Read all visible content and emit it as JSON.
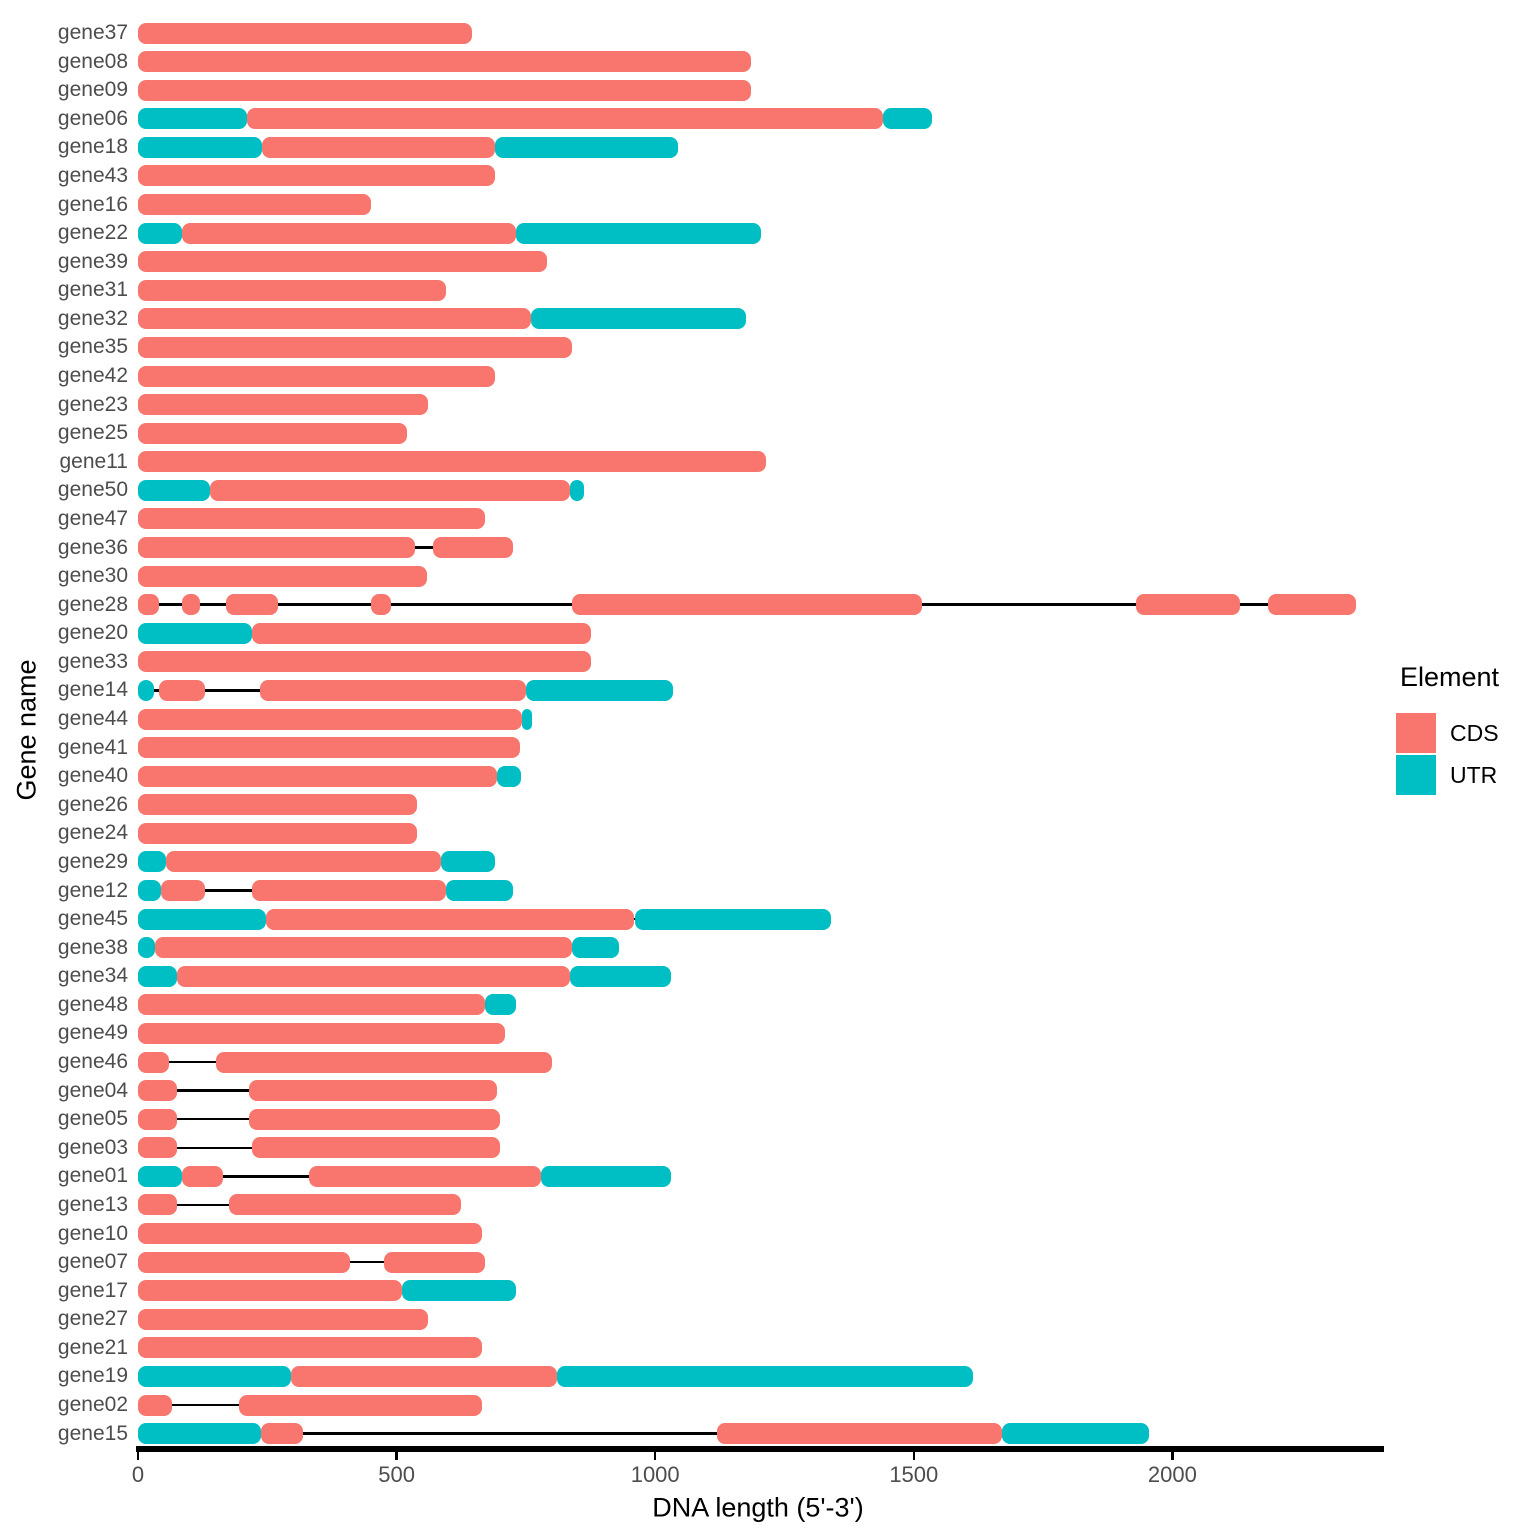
{
  "colors": {
    "cds": "#F8766D",
    "utr": "#00BFC4",
    "axis_line": "#000000",
    "axis_text": "#4d4d4d",
    "title_text": "#000000",
    "background": "#ffffff"
  },
  "x_axis": {
    "title": "DNA length (5'-3')",
    "ticks": [
      0,
      500,
      1000,
      1500,
      2000
    ],
    "tick_labels": [
      "0",
      "500",
      "1000",
      "1500",
      "2000"
    ],
    "range": [
      0,
      2410
    ]
  },
  "y_axis": {
    "title": "Gene name"
  },
  "legend": {
    "title": "Element",
    "items": [
      {
        "label": "CDS",
        "color": "#F8766D"
      },
      {
        "label": "UTR",
        "color": "#00BFC4"
      }
    ]
  },
  "chart_data": {
    "type": "bar",
    "subtype": "gene-structure-intervals",
    "title": "",
    "xlabel": "DNA length (5'-3')",
    "ylabel": "Gene name",
    "xlim": [
      0,
      2410
    ],
    "grid": false,
    "legend_position": "right",
    "legend_title": "Element",
    "elements": [
      "CDS",
      "UTR"
    ],
    "genes": [
      {
        "name": "gene37",
        "segments": [
          {
            "element": "CDS",
            "start": 0,
            "end": 645
          }
        ]
      },
      {
        "name": "gene08",
        "segments": [
          {
            "element": "CDS",
            "start": 0,
            "end": 1185
          }
        ]
      },
      {
        "name": "gene09",
        "segments": [
          {
            "element": "CDS",
            "start": 0,
            "end": 1185
          }
        ]
      },
      {
        "name": "gene06",
        "segments": [
          {
            "element": "UTR",
            "start": 0,
            "end": 210
          },
          {
            "element": "CDS",
            "start": 210,
            "end": 1440
          },
          {
            "element": "UTR",
            "start": 1440,
            "end": 1535
          }
        ]
      },
      {
        "name": "gene18",
        "segments": [
          {
            "element": "UTR",
            "start": 0,
            "end": 240
          },
          {
            "element": "CDS",
            "start": 240,
            "end": 690
          },
          {
            "element": "UTR",
            "start": 690,
            "end": 1045
          }
        ]
      },
      {
        "name": "gene43",
        "segments": [
          {
            "element": "CDS",
            "start": 0,
            "end": 690
          }
        ]
      },
      {
        "name": "gene16",
        "segments": [
          {
            "element": "CDS",
            "start": 0,
            "end": 450
          }
        ]
      },
      {
        "name": "gene22",
        "segments": [
          {
            "element": "UTR",
            "start": 0,
            "end": 85
          },
          {
            "element": "CDS",
            "start": 85,
            "end": 730
          },
          {
            "element": "UTR",
            "start": 730,
            "end": 1205
          }
        ]
      },
      {
        "name": "gene39",
        "segments": [
          {
            "element": "CDS",
            "start": 0,
            "end": 790
          }
        ]
      },
      {
        "name": "gene31",
        "segments": [
          {
            "element": "CDS",
            "start": 0,
            "end": 595
          }
        ]
      },
      {
        "name": "gene32",
        "segments": [
          {
            "element": "CDS",
            "start": 0,
            "end": 760
          },
          {
            "element": "UTR",
            "start": 760,
            "end": 1175
          }
        ]
      },
      {
        "name": "gene35",
        "segments": [
          {
            "element": "CDS",
            "start": 0,
            "end": 840
          }
        ]
      },
      {
        "name": "gene42",
        "segments": [
          {
            "element": "CDS",
            "start": 0,
            "end": 690
          }
        ]
      },
      {
        "name": "gene23",
        "segments": [
          {
            "element": "CDS",
            "start": 0,
            "end": 560
          }
        ]
      },
      {
        "name": "gene25",
        "segments": [
          {
            "element": "CDS",
            "start": 0,
            "end": 520
          }
        ]
      },
      {
        "name": "gene11",
        "segments": [
          {
            "element": "CDS",
            "start": 0,
            "end": 1215
          }
        ]
      },
      {
        "name": "gene50",
        "segments": [
          {
            "element": "UTR",
            "start": 0,
            "end": 140
          },
          {
            "element": "CDS",
            "start": 140,
            "end": 835
          },
          {
            "element": "UTR",
            "start": 835,
            "end": 862
          }
        ]
      },
      {
        "name": "gene47",
        "segments": [
          {
            "element": "CDS",
            "start": 0,
            "end": 670
          }
        ]
      },
      {
        "name": "gene36",
        "segments": [
          {
            "element": "CDS",
            "start": 0,
            "end": 535
          },
          {
            "element": "CDS",
            "start": 570,
            "end": 725
          }
        ]
      },
      {
        "name": "gene30",
        "segments": [
          {
            "element": "CDS",
            "start": 0,
            "end": 558
          }
        ]
      },
      {
        "name": "gene28",
        "segments": [
          {
            "element": "CDS",
            "start": 0,
            "end": 40
          },
          {
            "element": "CDS",
            "start": 85,
            "end": 120
          },
          {
            "element": "CDS",
            "start": 170,
            "end": 270
          },
          {
            "element": "CDS",
            "start": 450,
            "end": 490
          },
          {
            "element": "CDS",
            "start": 840,
            "end": 1515
          },
          {
            "element": "CDS",
            "start": 1930,
            "end": 2130
          },
          {
            "element": "CDS",
            "start": 2185,
            "end": 2355
          }
        ]
      },
      {
        "name": "gene20",
        "segments": [
          {
            "element": "UTR",
            "start": 0,
            "end": 220
          },
          {
            "element": "CDS",
            "start": 220,
            "end": 875
          }
        ]
      },
      {
        "name": "gene33",
        "segments": [
          {
            "element": "CDS",
            "start": 0,
            "end": 875
          }
        ]
      },
      {
        "name": "gene14",
        "segments": [
          {
            "element": "UTR",
            "start": 0,
            "end": 30
          },
          {
            "element": "CDS",
            "start": 40,
            "end": 130
          },
          {
            "element": "CDS",
            "start": 235,
            "end": 750
          },
          {
            "element": "UTR",
            "start": 750,
            "end": 1035
          }
        ]
      },
      {
        "name": "gene44",
        "segments": [
          {
            "element": "CDS",
            "start": 0,
            "end": 743
          },
          {
            "element": "UTR",
            "start": 743,
            "end": 762
          }
        ]
      },
      {
        "name": "gene41",
        "segments": [
          {
            "element": "CDS",
            "start": 0,
            "end": 738
          }
        ]
      },
      {
        "name": "gene40",
        "segments": [
          {
            "element": "CDS",
            "start": 0,
            "end": 695
          },
          {
            "element": "UTR",
            "start": 695,
            "end": 740
          }
        ]
      },
      {
        "name": "gene26",
        "segments": [
          {
            "element": "CDS",
            "start": 0,
            "end": 540
          }
        ]
      },
      {
        "name": "gene24",
        "segments": [
          {
            "element": "CDS",
            "start": 0,
            "end": 540
          }
        ]
      },
      {
        "name": "gene29",
        "segments": [
          {
            "element": "UTR",
            "start": 0,
            "end": 55
          },
          {
            "element": "CDS",
            "start": 55,
            "end": 585
          },
          {
            "element": "UTR",
            "start": 585,
            "end": 690
          }
        ]
      },
      {
        "name": "gene12",
        "segments": [
          {
            "element": "UTR",
            "start": 0,
            "end": 45
          },
          {
            "element": "CDS",
            "start": 45,
            "end": 130
          },
          {
            "element": "CDS",
            "start": 220,
            "end": 595
          },
          {
            "element": "UTR",
            "start": 595,
            "end": 725
          }
        ]
      },
      {
        "name": "gene45",
        "segments": [
          {
            "element": "UTR",
            "start": 0,
            "end": 248
          },
          {
            "element": "CDS",
            "start": 248,
            "end": 960
          },
          {
            "element": "UTR",
            "start": 960,
            "end": 1340
          }
        ]
      },
      {
        "name": "gene38",
        "segments": [
          {
            "element": "UTR",
            "start": 0,
            "end": 32
          },
          {
            "element": "CDS",
            "start": 32,
            "end": 840
          },
          {
            "element": "UTR",
            "start": 840,
            "end": 930
          }
        ]
      },
      {
        "name": "gene34",
        "segments": [
          {
            "element": "UTR",
            "start": 0,
            "end": 75
          },
          {
            "element": "CDS",
            "start": 75,
            "end": 835
          },
          {
            "element": "UTR",
            "start": 835,
            "end": 1030
          }
        ]
      },
      {
        "name": "gene48",
        "segments": [
          {
            "element": "CDS",
            "start": 0,
            "end": 670
          },
          {
            "element": "UTR",
            "start": 670,
            "end": 730
          }
        ]
      },
      {
        "name": "gene49",
        "segments": [
          {
            "element": "CDS",
            "start": 0,
            "end": 710
          }
        ]
      },
      {
        "name": "gene46",
        "segments": [
          {
            "element": "CDS",
            "start": 0,
            "end": 60
          },
          {
            "element": "CDS",
            "start": 150,
            "end": 800
          }
        ]
      },
      {
        "name": "gene04",
        "segments": [
          {
            "element": "CDS",
            "start": 0,
            "end": 75
          },
          {
            "element": "CDS",
            "start": 215,
            "end": 695
          }
        ]
      },
      {
        "name": "gene05",
        "segments": [
          {
            "element": "CDS",
            "start": 0,
            "end": 75
          },
          {
            "element": "CDS",
            "start": 215,
            "end": 700
          }
        ]
      },
      {
        "name": "gene03",
        "segments": [
          {
            "element": "CDS",
            "start": 0,
            "end": 75
          },
          {
            "element": "CDS",
            "start": 220,
            "end": 700
          }
        ]
      },
      {
        "name": "gene01",
        "segments": [
          {
            "element": "UTR",
            "start": 0,
            "end": 85
          },
          {
            "element": "CDS",
            "start": 85,
            "end": 165
          },
          {
            "element": "CDS",
            "start": 330,
            "end": 780
          },
          {
            "element": "UTR",
            "start": 780,
            "end": 1030
          }
        ]
      },
      {
        "name": "gene13",
        "segments": [
          {
            "element": "CDS",
            "start": 0,
            "end": 75
          },
          {
            "element": "CDS",
            "start": 175,
            "end": 625
          }
        ]
      },
      {
        "name": "gene10",
        "segments": [
          {
            "element": "CDS",
            "start": 0,
            "end": 665
          }
        ]
      },
      {
        "name": "gene07",
        "segments": [
          {
            "element": "CDS",
            "start": 0,
            "end": 410
          },
          {
            "element": "CDS",
            "start": 475,
            "end": 670
          }
        ]
      },
      {
        "name": "gene17",
        "segments": [
          {
            "element": "CDS",
            "start": 0,
            "end": 510
          },
          {
            "element": "UTR",
            "start": 510,
            "end": 730
          }
        ]
      },
      {
        "name": "gene27",
        "segments": [
          {
            "element": "CDS",
            "start": 0,
            "end": 560
          }
        ]
      },
      {
        "name": "gene21",
        "segments": [
          {
            "element": "CDS",
            "start": 0,
            "end": 665
          }
        ]
      },
      {
        "name": "gene19",
        "segments": [
          {
            "element": "UTR",
            "start": 0,
            "end": 295
          },
          {
            "element": "CDS",
            "start": 295,
            "end": 810
          },
          {
            "element": "UTR",
            "start": 810,
            "end": 1615
          }
        ]
      },
      {
        "name": "gene02",
        "segments": [
          {
            "element": "CDS",
            "start": 0,
            "end": 65
          },
          {
            "element": "CDS",
            "start": 195,
            "end": 665
          }
        ]
      },
      {
        "name": "gene15",
        "segments": [
          {
            "element": "UTR",
            "start": 0,
            "end": 238
          },
          {
            "element": "CDS",
            "start": 238,
            "end": 320
          },
          {
            "element": "CDS",
            "start": 1120,
            "end": 1670
          },
          {
            "element": "UTR",
            "start": 1670,
            "end": 1955
          }
        ]
      }
    ]
  }
}
